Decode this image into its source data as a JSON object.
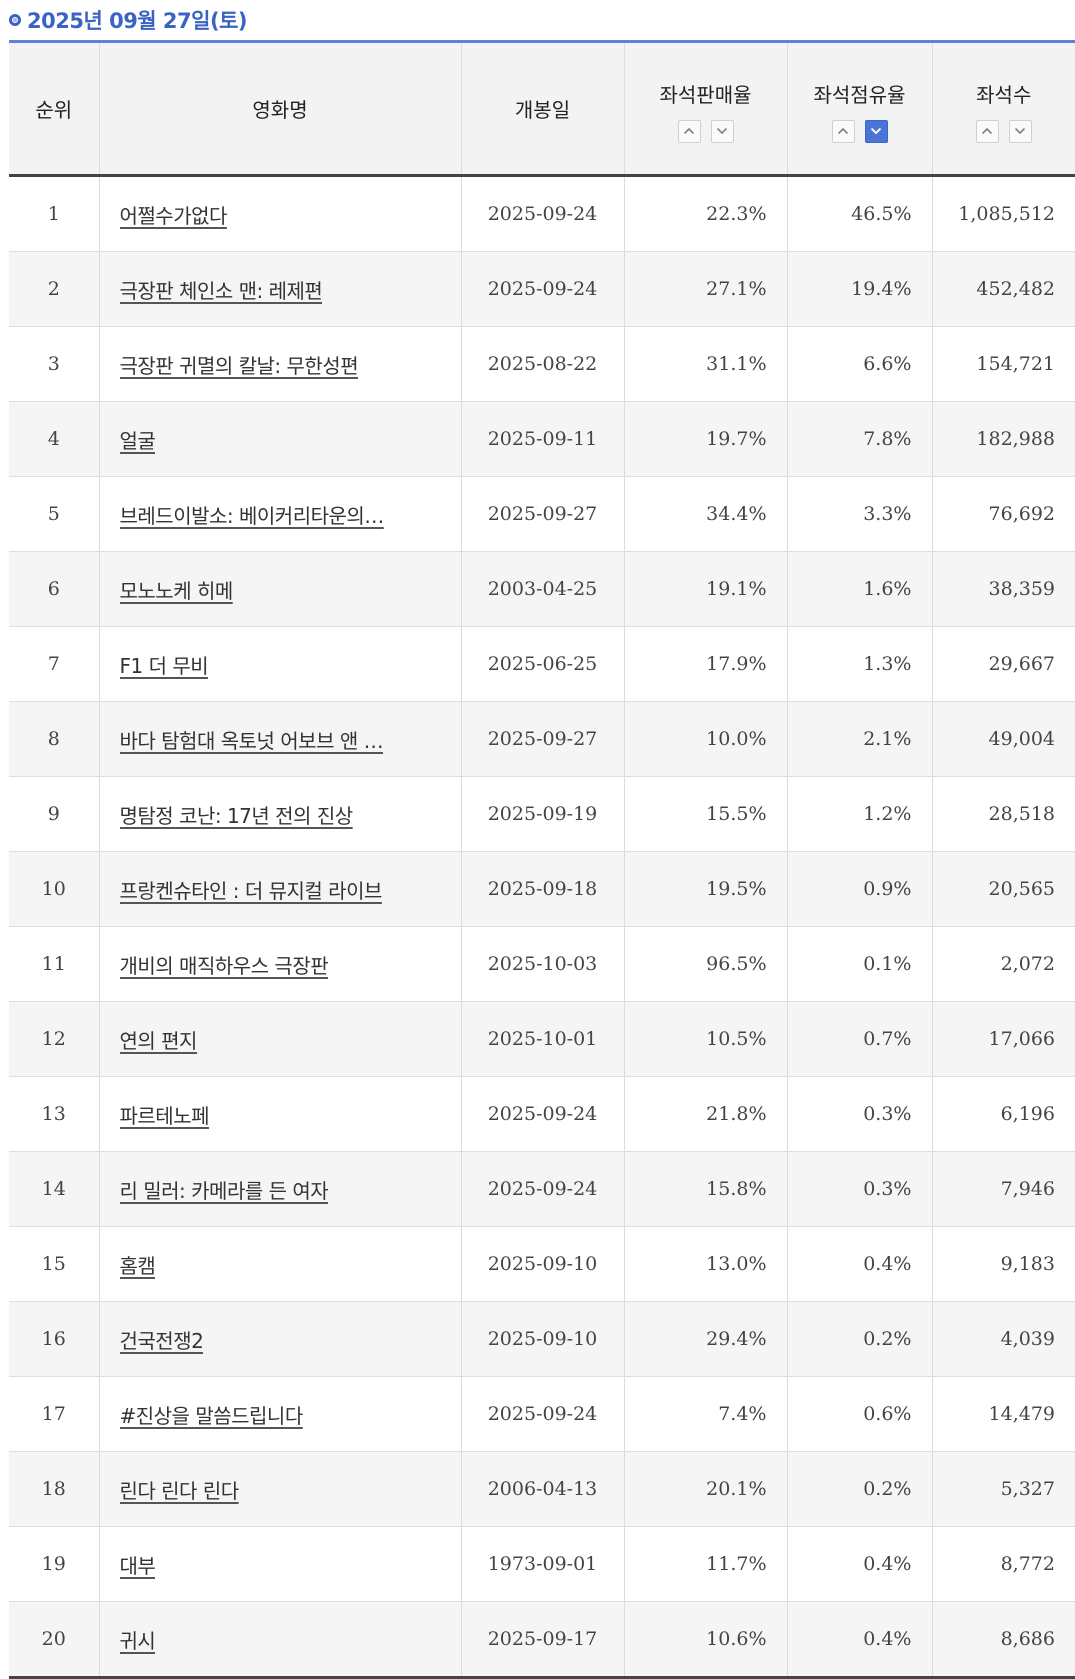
{
  "header": {
    "date": "2025년 09월 27일(토)"
  },
  "table": {
    "columns": {
      "rank": "순위",
      "title": "영화명",
      "open_date": "개봉일",
      "sales_rate": "좌석판매율",
      "share_rate": "좌석점유율",
      "seats": "좌석수"
    },
    "sort": {
      "active_column": "좌석점유율",
      "active_direction": "down",
      "up_icon": "chevron-up-icon",
      "down_icon": "chevron-down-icon",
      "active_color": "#4a74d8"
    },
    "rows": [
      {
        "rank": "1",
        "title": "어쩔수가없다",
        "open_date": "2025-09-24",
        "sales_rate": "22.3%",
        "share_rate": "46.5%",
        "seats": "1,085,512"
      },
      {
        "rank": "2",
        "title": "극장판 체인소 맨: 레제편",
        "open_date": "2025-09-24",
        "sales_rate": "27.1%",
        "share_rate": "19.4%",
        "seats": "452,482"
      },
      {
        "rank": "3",
        "title": "극장판 귀멸의 칼날: 무한성편",
        "open_date": "2025-08-22",
        "sales_rate": "31.1%",
        "share_rate": "6.6%",
        "seats": "154,721"
      },
      {
        "rank": "4",
        "title": "얼굴",
        "open_date": "2025-09-11",
        "sales_rate": "19.7%",
        "share_rate": "7.8%",
        "seats": "182,988"
      },
      {
        "rank": "5",
        "title": "브레드이발소: 베이커리타운의…",
        "open_date": "2025-09-27",
        "sales_rate": "34.4%",
        "share_rate": "3.3%",
        "seats": "76,692"
      },
      {
        "rank": "6",
        "title": "모노노케 히메",
        "open_date": "2003-04-25",
        "sales_rate": "19.1%",
        "share_rate": "1.6%",
        "seats": "38,359"
      },
      {
        "rank": "7",
        "title": "F1 더 무비",
        "open_date": "2025-06-25",
        "sales_rate": "17.9%",
        "share_rate": "1.3%",
        "seats": "29,667"
      },
      {
        "rank": "8",
        "title": "바다 탐험대 옥토넛 어보브 앤 …",
        "open_date": "2025-09-27",
        "sales_rate": "10.0%",
        "share_rate": "2.1%",
        "seats": "49,004"
      },
      {
        "rank": "9",
        "title": "명탐정 코난: 17년 전의 진상",
        "open_date": "2025-09-19",
        "sales_rate": "15.5%",
        "share_rate": "1.2%",
        "seats": "28,518"
      },
      {
        "rank": "10",
        "title": "프랑켄슈타인 : 더 뮤지컬 라이브",
        "open_date": "2025-09-18",
        "sales_rate": "19.5%",
        "share_rate": "0.9%",
        "seats": "20,565"
      },
      {
        "rank": "11",
        "title": "개비의 매직하우스 극장판",
        "open_date": "2025-10-03",
        "sales_rate": "96.5%",
        "share_rate": "0.1%",
        "seats": "2,072"
      },
      {
        "rank": "12",
        "title": "연의 편지",
        "open_date": "2025-10-01",
        "sales_rate": "10.5%",
        "share_rate": "0.7%",
        "seats": "17,066"
      },
      {
        "rank": "13",
        "title": "파르테노페",
        "open_date": "2025-09-24",
        "sales_rate": "21.8%",
        "share_rate": "0.3%",
        "seats": "6,196"
      },
      {
        "rank": "14",
        "title": "리 밀러: 카메라를 든 여자",
        "open_date": "2025-09-24",
        "sales_rate": "15.8%",
        "share_rate": "0.3%",
        "seats": "7,946"
      },
      {
        "rank": "15",
        "title": "홈캠",
        "open_date": "2025-09-10",
        "sales_rate": "13.0%",
        "share_rate": "0.4%",
        "seats": "9,183"
      },
      {
        "rank": "16",
        "title": "건국전쟁2",
        "open_date": "2025-09-10",
        "sales_rate": "29.4%",
        "share_rate": "0.2%",
        "seats": "4,039"
      },
      {
        "rank": "17",
        "title": "#진상을 말씀드립니다",
        "open_date": "2025-09-24",
        "sales_rate": "7.4%",
        "share_rate": "0.6%",
        "seats": "14,479"
      },
      {
        "rank": "18",
        "title": "린다 린다 린다",
        "open_date": "2006-04-13",
        "sales_rate": "20.1%",
        "share_rate": "0.2%",
        "seats": "5,327"
      },
      {
        "rank": "19",
        "title": "대부",
        "open_date": "1973-09-01",
        "sales_rate": "11.7%",
        "share_rate": "0.4%",
        "seats": "8,772"
      },
      {
        "rank": "20",
        "title": "귀시",
        "open_date": "2025-09-17",
        "sales_rate": "10.6%",
        "share_rate": "0.4%",
        "seats": "8,686"
      }
    ]
  }
}
